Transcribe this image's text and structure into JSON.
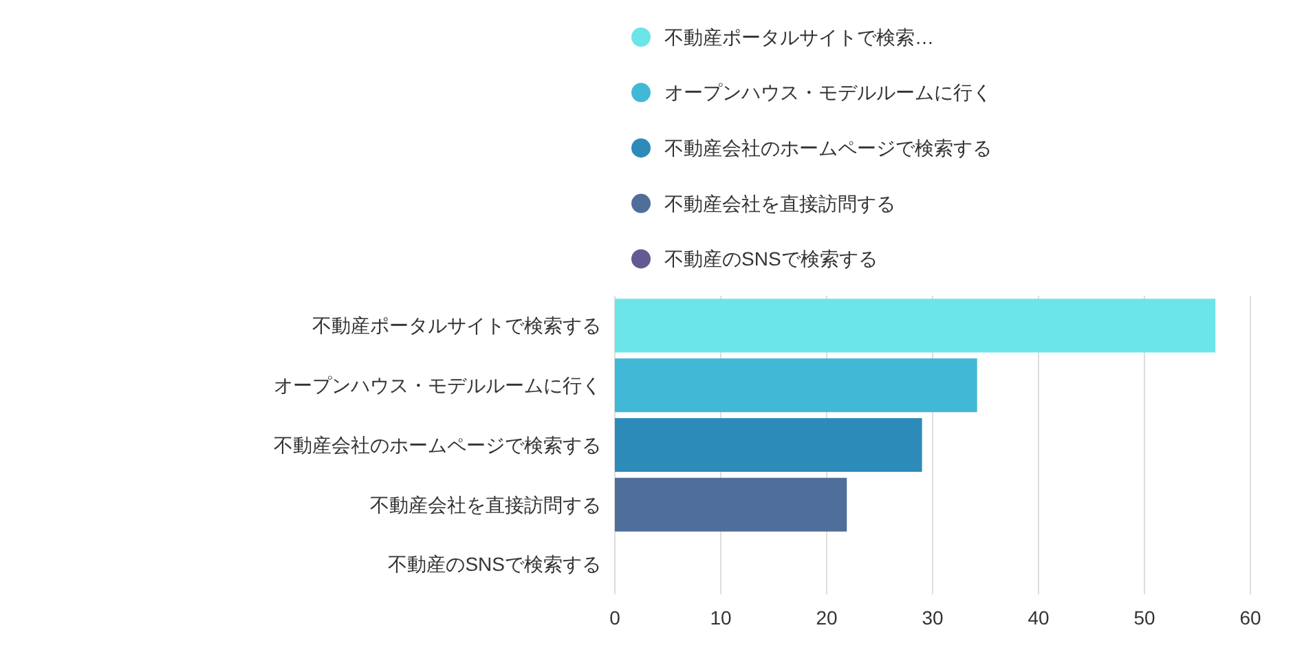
{
  "chart_data": {
    "type": "bar",
    "orientation": "horizontal",
    "stacked": true,
    "categories": [
      "不動産ポータルサイトで検索する",
      "オープンハウス・モデルルームに行く",
      "不動産会社のホームページで検索する",
      "不動産会社を直接訪問する",
      "不動産のSNSで検索する"
    ],
    "series": [
      {
        "name": "不動産ポータルサイトで検索…",
        "color": "#6ce5e8",
        "values": [
          56.7,
          null,
          null,
          null,
          null
        ]
      },
      {
        "name": "オープンハウス・モデルルームに行く",
        "color": "#41b8d5",
        "values": [
          null,
          34.2,
          null,
          null,
          null
        ]
      },
      {
        "name": "不動産会社のホームページで検索する",
        "color": "#2d8bba",
        "values": [
          null,
          null,
          29,
          null,
          null
        ]
      },
      {
        "name": "不動産会社を直接訪問する",
        "color": "#506e9a",
        "values": [
          null,
          null,
          null,
          21.9,
          null
        ]
      },
      {
        "name": "不動産のSNSで検索する",
        "color": "#635a92",
        "values": [
          null,
          null,
          null,
          null,
          0
        ]
      }
    ],
    "xlim": [
      0,
      60
    ],
    "xticks": [
      0,
      10,
      20,
      30,
      40,
      50,
      60
    ],
    "grid": "x",
    "legend": "top"
  }
}
